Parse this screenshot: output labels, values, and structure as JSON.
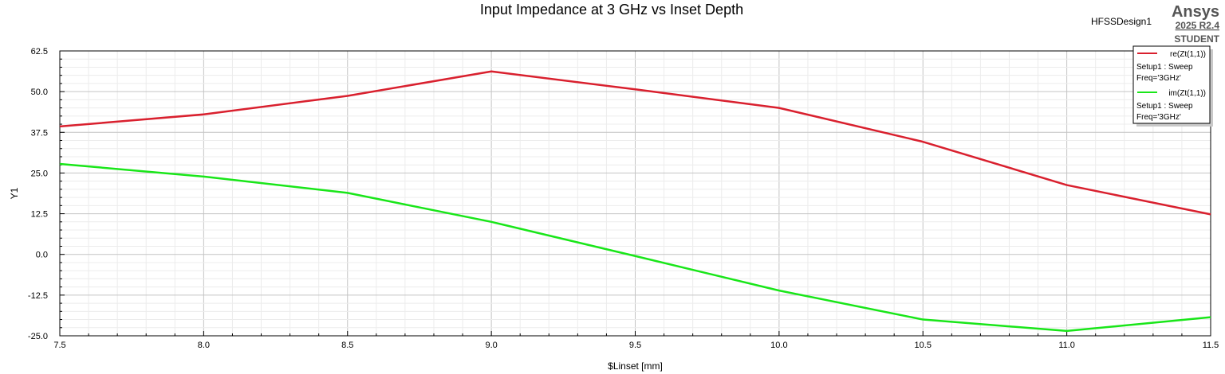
{
  "header": {
    "title": "Input Impedance at 3 GHz vs Inset Depth",
    "design_name": "HFSSDesign1",
    "brand": "Ansys",
    "version": "2025 R2.4",
    "edition": "STUDENT"
  },
  "legend": [
    {
      "name": "re(Zt(1,1))",
      "line2": "Setup1 : Sweep",
      "line3": "Freq='3GHz'",
      "color": "#d9202e"
    },
    {
      "name": "im(Zt(1,1))",
      "line2": "Setup1 : Sweep",
      "line3": "Freq='3GHz'",
      "color": "#19e619"
    }
  ],
  "chart_data": {
    "type": "line",
    "xlabel": "$Linset [mm]",
    "ylabel": "Y1",
    "xlim": [
      7.5,
      11.5
    ],
    "ylim": [
      -25.0,
      62.5
    ],
    "xticks": [
      "7.5",
      "8.0",
      "8.5",
      "9.0",
      "9.5",
      "10.0",
      "10.5",
      "11.0",
      "11.5"
    ],
    "yticks": [
      "62.5",
      "50.0",
      "37.5",
      "25.0",
      "12.5",
      "0.0",
      "-12.5",
      "-25.0"
    ],
    "grid": true,
    "legend_position": "top-right",
    "x": [
      7.5,
      8.0,
      8.5,
      9.0,
      9.5,
      10.0,
      10.5,
      11.0,
      11.5
    ],
    "series": [
      {
        "name": "re(Zt(1,1))",
        "color": "#d9202e",
        "values": [
          39.3,
          43.0,
          48.7,
          56.2,
          50.7,
          45.0,
          34.6,
          21.3,
          12.3
        ]
      },
      {
        "name": "im(Zt(1,1))",
        "color": "#19e619",
        "values": [
          27.8,
          23.9,
          18.9,
          10.0,
          -0.5,
          -11.1,
          -20.0,
          -23.5,
          -19.3
        ]
      }
    ]
  }
}
